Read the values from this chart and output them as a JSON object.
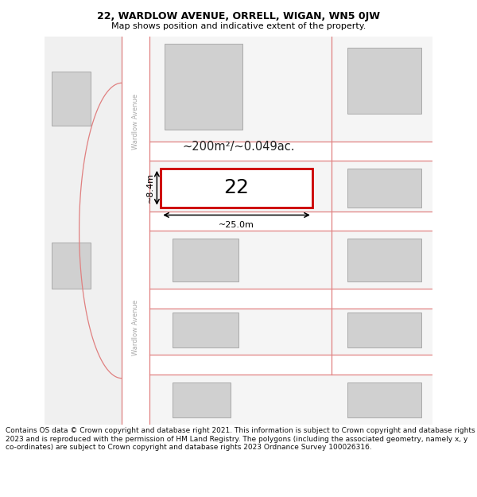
{
  "title": "22, WARDLOW AVENUE, ORRELL, WIGAN, WN5 0JW",
  "subtitle": "Map shows position and indicative extent of the property.",
  "footnote": "Contains OS data © Crown copyright and database right 2021. This information is subject to Crown copyright and database rights 2023 and is reproduced with the permission of HM Land Registry. The polygons (including the associated geometry, namely x, y co-ordinates) are subject to Crown copyright and database rights 2023 Ordnance Survey 100026316.",
  "bg_color": "#f5f5f5",
  "map_bg": "#f5f5f5",
  "road_bg": "#ffffff",
  "road_border_color": "#e08080",
  "building_fill": "#d0d0d0",
  "building_edge": "#aaaaaa",
  "highlight_fill": "#ffffff",
  "highlight_edge": "#cc0000",
  "area_text": "~200m²/~0.049ac.",
  "number_label": "22",
  "dim_width": "~25.0m",
  "dim_height": "~8.4m",
  "street_label": "Wardlow Avenue",
  "title_fontsize": 9,
  "subtitle_fontsize": 8,
  "footnote_fontsize": 6.5
}
